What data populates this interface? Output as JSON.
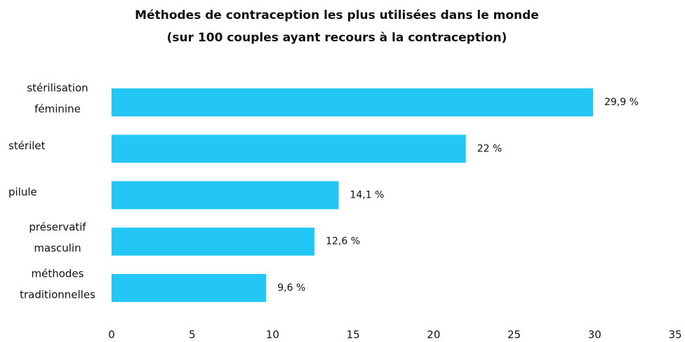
{
  "chart_data": {
    "type": "bar",
    "orientation": "horizontal",
    "title": "Méthodes de contraception les plus utilisées dans le monde",
    "subtitle": "(sur 100 couples ayant recours à la contraception)",
    "categories": [
      [
        "stérilisation",
        "féminine"
      ],
      [
        "stérilet"
      ],
      [
        "pilule"
      ],
      [
        "préservatif",
        "masculin"
      ],
      [
        "méthodes",
        "traditionnelles"
      ]
    ],
    "values": [
      29.9,
      22,
      14.1,
      12.6,
      9.6
    ],
    "value_labels": [
      "29,9 %",
      "22 %",
      "14,1 %",
      "12,6 %",
      "9,6 %"
    ],
    "color": "#22c7f5",
    "xlim": [
      0,
      35
    ],
    "xticks": [
      0,
      5,
      10,
      15,
      20,
      25,
      30,
      35
    ],
    "grid": false
  }
}
